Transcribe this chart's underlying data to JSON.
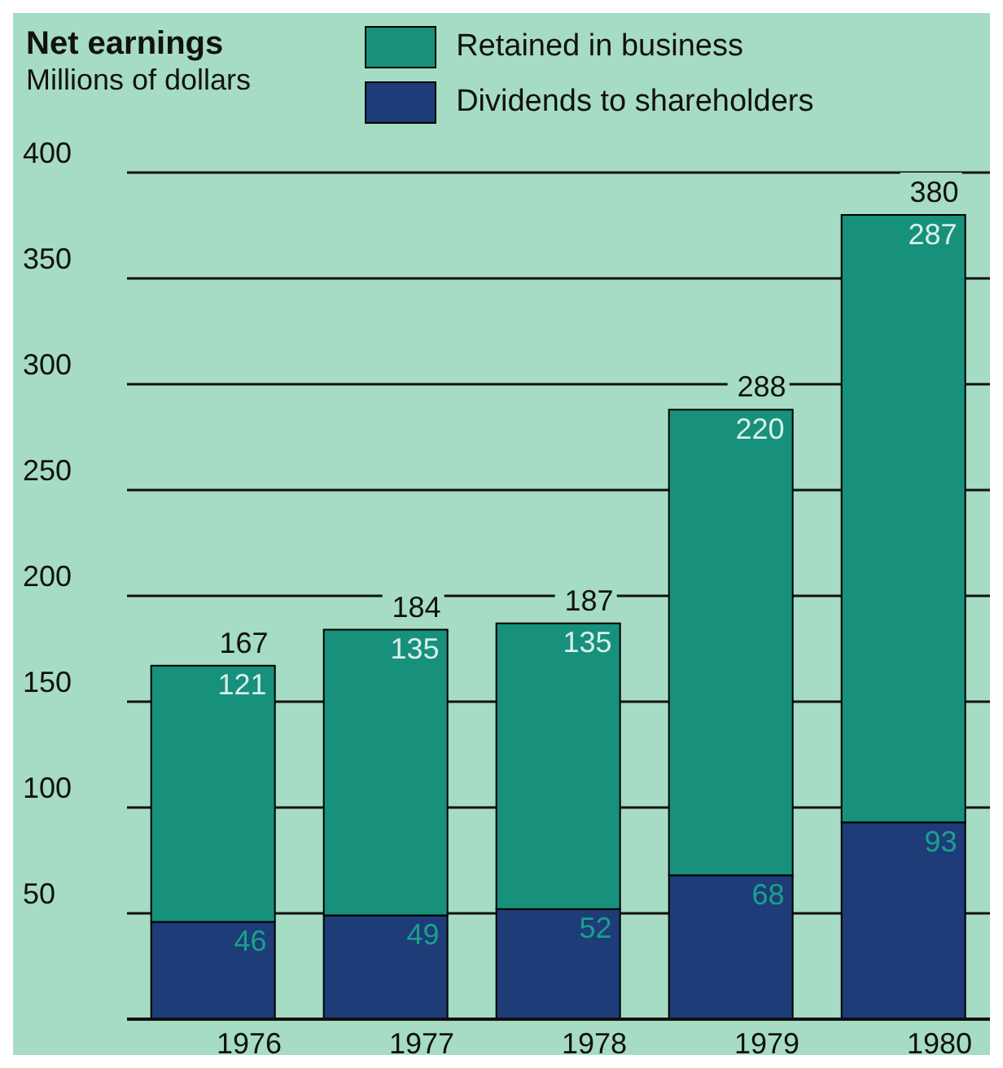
{
  "chart_data": {
    "type": "bar",
    "title": "Net earnings",
    "subtitle": "Millions of dollars",
    "categories": [
      "1976",
      "1977",
      "1978",
      "1979",
      "1980"
    ],
    "stacked": true,
    "series": [
      {
        "name": "Dividends to shareholders",
        "color": "#1d3c78",
        "values": [
          46,
          49,
          52,
          68,
          93
        ]
      },
      {
        "name": "Retained in business",
        "color": "#17907c",
        "values": [
          121,
          135,
          135,
          220,
          287
        ]
      }
    ],
    "totals": [
      "167",
      "184",
      "187",
      "288",
      "380"
    ],
    "data_labels": true,
    "ylim": [
      0,
      400
    ],
    "yticks": [
      {
        "value": 0,
        "label": null
      },
      50,
      100,
      150,
      200,
      250,
      300,
      350,
      400
    ],
    "grid": "y",
    "legend": "top"
  }
}
